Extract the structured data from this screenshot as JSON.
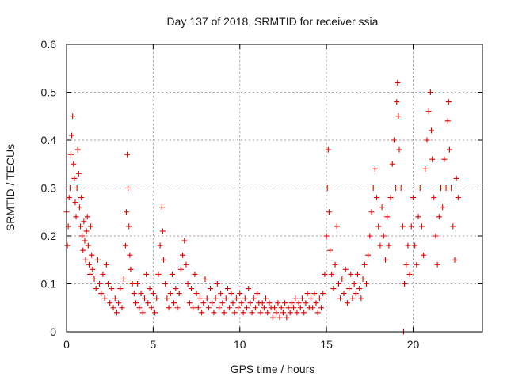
{
  "chart_data": {
    "type": "scatter",
    "title": "Day 137 of 2018, SRMTID for receiver ssia",
    "xlabel": "GPS time / hours",
    "ylabel": "SRMTID / TECUs",
    "xlim": [
      0,
      24
    ],
    "ylim": [
      0,
      0.6
    ],
    "x_ticks": [
      0,
      5,
      10,
      15,
      20
    ],
    "x_tick_labels": [
      "0",
      "5",
      "10",
      "15",
      "20"
    ],
    "y_ticks": [
      0,
      0.1,
      0.2,
      0.3,
      0.4,
      0.5,
      0.6
    ],
    "y_tick_labels": [
      "0",
      "0.1",
      "0.2",
      "0.3",
      "0.4",
      "0.5",
      "0.6"
    ],
    "grid": true,
    "marker": "plus",
    "series_color": "#e00000",
    "series": [
      {
        "name": "SRMTID",
        "points": [
          [
            0.0,
            0.25
          ],
          [
            0.05,
            0.18
          ],
          [
            0.1,
            0.22
          ],
          [
            0.15,
            0.28
          ],
          [
            0.2,
            0.3
          ],
          [
            0.25,
            0.37
          ],
          [
            0.3,
            0.41
          ],
          [
            0.35,
            0.45
          ],
          [
            0.4,
            0.35
          ],
          [
            0.45,
            0.32
          ],
          [
            0.5,
            0.27
          ],
          [
            0.55,
            0.24
          ],
          [
            0.6,
            0.3
          ],
          [
            0.65,
            0.38
          ],
          [
            0.7,
            0.33
          ],
          [
            0.75,
            0.26
          ],
          [
            0.8,
            0.22
          ],
          [
            0.85,
            0.28
          ],
          [
            0.9,
            0.2
          ],
          [
            0.95,
            0.17
          ],
          [
            1.0,
            0.23
          ],
          [
            1.05,
            0.19
          ],
          [
            1.1,
            0.15
          ],
          [
            1.15,
            0.21
          ],
          [
            1.2,
            0.24
          ],
          [
            1.25,
            0.18
          ],
          [
            1.3,
            0.14
          ],
          [
            1.35,
            0.12
          ],
          [
            1.4,
            0.22
          ],
          [
            1.45,
            0.16
          ],
          [
            1.5,
            0.13
          ],
          [
            1.6,
            0.11
          ],
          [
            1.7,
            0.09
          ],
          [
            1.8,
            0.15
          ],
          [
            1.9,
            0.1
          ],
          [
            2.0,
            0.08
          ],
          [
            2.1,
            0.12
          ],
          [
            2.2,
            0.07
          ],
          [
            2.3,
            0.14
          ],
          [
            2.4,
            0.1
          ],
          [
            2.5,
            0.06
          ],
          [
            2.6,
            0.09
          ],
          [
            2.7,
            0.05
          ],
          [
            2.8,
            0.07
          ],
          [
            2.9,
            0.04
          ],
          [
            3.0,
            0.06
          ],
          [
            3.1,
            0.09
          ],
          [
            3.2,
            0.05
          ],
          [
            3.3,
            0.11
          ],
          [
            3.4,
            0.18
          ],
          [
            3.45,
            0.25
          ],
          [
            3.5,
            0.37
          ],
          [
            3.55,
            0.3
          ],
          [
            3.6,
            0.22
          ],
          [
            3.65,
            0.16
          ],
          [
            3.7,
            0.13
          ],
          [
            3.8,
            0.1
          ],
          [
            3.9,
            0.08
          ],
          [
            4.0,
            0.06
          ],
          [
            4.1,
            0.1
          ],
          [
            4.2,
            0.05
          ],
          [
            4.3,
            0.08
          ],
          [
            4.4,
            0.04
          ],
          [
            4.5,
            0.07
          ],
          [
            4.6,
            0.12
          ],
          [
            4.7,
            0.06
          ],
          [
            4.8,
            0.09
          ],
          [
            4.9,
            0.05
          ],
          [
            5.0,
            0.08
          ],
          [
            5.1,
            0.04
          ],
          [
            5.2,
            0.07
          ],
          [
            5.3,
            0.12
          ],
          [
            5.4,
            0.18
          ],
          [
            5.5,
            0.26
          ],
          [
            5.55,
            0.21
          ],
          [
            5.6,
            0.15
          ],
          [
            5.7,
            0.1
          ],
          [
            5.8,
            0.07
          ],
          [
            5.9,
            0.05
          ],
          [
            6.0,
            0.08
          ],
          [
            6.1,
            0.12
          ],
          [
            6.2,
            0.06
          ],
          [
            6.3,
            0.09
          ],
          [
            6.4,
            0.05
          ],
          [
            6.5,
            0.08
          ],
          [
            6.6,
            0.13
          ],
          [
            6.7,
            0.16
          ],
          [
            6.8,
            0.19
          ],
          [
            6.9,
            0.14
          ],
          [
            7.0,
            0.1
          ],
          [
            7.1,
            0.06
          ],
          [
            7.2,
            0.09
          ],
          [
            7.3,
            0.05
          ],
          [
            7.4,
            0.12
          ],
          [
            7.5,
            0.08
          ],
          [
            7.6,
            0.05
          ],
          [
            7.7,
            0.07
          ],
          [
            7.8,
            0.04
          ],
          [
            7.9,
            0.06
          ],
          [
            8.0,
            0.11
          ],
          [
            8.1,
            0.07
          ],
          [
            8.2,
            0.05
          ],
          [
            8.3,
            0.09
          ],
          [
            8.4,
            0.06
          ],
          [
            8.5,
            0.04
          ],
          [
            8.6,
            0.07
          ],
          [
            8.7,
            0.1
          ],
          [
            8.8,
            0.05
          ],
          [
            8.9,
            0.08
          ],
          [
            9.0,
            0.06
          ],
          [
            9.1,
            0.04
          ],
          [
            9.2,
            0.07
          ],
          [
            9.3,
            0.09
          ],
          [
            9.4,
            0.05
          ],
          [
            9.5,
            0.08
          ],
          [
            9.6,
            0.06
          ],
          [
            9.7,
            0.04
          ],
          [
            9.8,
            0.07
          ],
          [
            9.9,
            0.05
          ],
          [
            10.0,
            0.08
          ],
          [
            10.1,
            0.06
          ],
          [
            10.2,
            0.04
          ],
          [
            10.3,
            0.07
          ],
          [
            10.4,
            0.05
          ],
          [
            10.5,
            0.09
          ],
          [
            10.6,
            0.06
          ],
          [
            10.7,
            0.04
          ],
          [
            10.8,
            0.07
          ],
          [
            10.9,
            0.05
          ],
          [
            11.0,
            0.08
          ],
          [
            11.1,
            0.06
          ],
          [
            11.2,
            0.04
          ],
          [
            11.3,
            0.06
          ],
          [
            11.4,
            0.05
          ],
          [
            11.5,
            0.07
          ],
          [
            11.6,
            0.04
          ],
          [
            11.7,
            0.06
          ],
          [
            11.8,
            0.05
          ],
          [
            11.9,
            0.03
          ],
          [
            12.0,
            0.05
          ],
          [
            12.1,
            0.04
          ],
          [
            12.2,
            0.06
          ],
          [
            12.3,
            0.03
          ],
          [
            12.4,
            0.05
          ],
          [
            12.5,
            0.04
          ],
          [
            12.6,
            0.06
          ],
          [
            12.7,
            0.03
          ],
          [
            12.8,
            0.05
          ],
          [
            12.9,
            0.04
          ],
          [
            13.0,
            0.06
          ],
          [
            13.1,
            0.05
          ],
          [
            13.2,
            0.07
          ],
          [
            13.3,
            0.04
          ],
          [
            13.4,
            0.06
          ],
          [
            13.5,
            0.05
          ],
          [
            13.6,
            0.07
          ],
          [
            13.7,
            0.04
          ],
          [
            13.8,
            0.06
          ],
          [
            13.9,
            0.08
          ],
          [
            14.0,
            0.05
          ],
          [
            14.1,
            0.07
          ],
          [
            14.2,
            0.05
          ],
          [
            14.3,
            0.08
          ],
          [
            14.4,
            0.06
          ],
          [
            14.5,
            0.04
          ],
          [
            14.6,
            0.07
          ],
          [
            14.7,
            0.05
          ],
          [
            14.8,
            0.08
          ],
          [
            14.9,
            0.12
          ],
          [
            15.0,
            0.2
          ],
          [
            15.05,
            0.3
          ],
          [
            15.1,
            0.38
          ],
          [
            15.15,
            0.25
          ],
          [
            15.2,
            0.17
          ],
          [
            15.3,
            0.12
          ],
          [
            15.4,
            0.09
          ],
          [
            15.5,
            0.14
          ],
          [
            15.6,
            0.22
          ],
          [
            15.7,
            0.1
          ],
          [
            15.8,
            0.07
          ],
          [
            15.9,
            0.11
          ],
          [
            16.0,
            0.08
          ],
          [
            16.1,
            0.13
          ],
          [
            16.2,
            0.06
          ],
          [
            16.3,
            0.09
          ],
          [
            16.4,
            0.12
          ],
          [
            16.5,
            0.07
          ],
          [
            16.6,
            0.1
          ],
          [
            16.7,
            0.08
          ],
          [
            16.8,
            0.12
          ],
          [
            16.9,
            0.09
          ],
          [
            17.0,
            0.07
          ],
          [
            17.1,
            0.11
          ],
          [
            17.2,
            0.14
          ],
          [
            17.3,
            0.1
          ],
          [
            17.4,
            0.16
          ],
          [
            17.5,
            0.2
          ],
          [
            17.6,
            0.25
          ],
          [
            17.7,
            0.3
          ],
          [
            17.8,
            0.34
          ],
          [
            17.9,
            0.28
          ],
          [
            18.0,
            0.22
          ],
          [
            18.1,
            0.18
          ],
          [
            18.2,
            0.26
          ],
          [
            18.3,
            0.2
          ],
          [
            18.4,
            0.15
          ],
          [
            18.5,
            0.24
          ],
          [
            18.6,
            0.18
          ],
          [
            18.7,
            0.28
          ],
          [
            18.8,
            0.35
          ],
          [
            18.9,
            0.4
          ],
          [
            19.0,
            0.3
          ],
          [
            19.05,
            0.48
          ],
          [
            19.1,
            0.52
          ],
          [
            19.15,
            0.45
          ],
          [
            19.2,
            0.38
          ],
          [
            19.3,
            0.3
          ],
          [
            19.4,
            0.22
          ],
          [
            19.45,
            0.0
          ],
          [
            19.5,
            0.1
          ],
          [
            19.6,
            0.14
          ],
          [
            19.7,
            0.18
          ],
          [
            19.8,
            0.12
          ],
          [
            19.9,
            0.22
          ],
          [
            20.0,
            0.28
          ],
          [
            20.1,
            0.18
          ],
          [
            20.2,
            0.14
          ],
          [
            20.3,
            0.24
          ],
          [
            20.4,
            0.3
          ],
          [
            20.5,
            0.22
          ],
          [
            20.6,
            0.16
          ],
          [
            20.7,
            0.34
          ],
          [
            20.8,
            0.4
          ],
          [
            20.9,
            0.46
          ],
          [
            21.0,
            0.5
          ],
          [
            21.05,
            0.42
          ],
          [
            21.1,
            0.36
          ],
          [
            21.2,
            0.28
          ],
          [
            21.3,
            0.2
          ],
          [
            21.4,
            0.14
          ],
          [
            21.5,
            0.24
          ],
          [
            21.6,
            0.3
          ],
          [
            21.7,
            0.26
          ],
          [
            21.8,
            0.36
          ],
          [
            21.9,
            0.3
          ],
          [
            22.0,
            0.44
          ],
          [
            22.05,
            0.48
          ],
          [
            22.1,
            0.38
          ],
          [
            22.2,
            0.3
          ],
          [
            22.3,
            0.22
          ],
          [
            22.4,
            0.15
          ],
          [
            22.5,
            0.32
          ],
          [
            22.6,
            0.28
          ]
        ]
      }
    ]
  }
}
